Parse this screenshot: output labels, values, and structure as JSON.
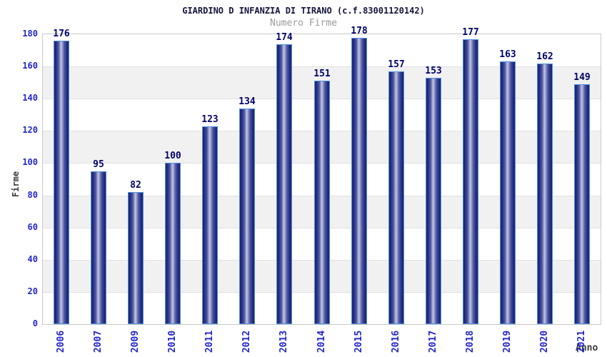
{
  "chart_data": {
    "type": "bar",
    "title": "GIARDINO D INFANZIA DI TIRANO (c.f.83001120142)",
    "subtitle": "Numero Firme",
    "xlabel": "Anno",
    "ylabel": "Firme",
    "categories": [
      "2006",
      "2007",
      "2009",
      "2010",
      "2011",
      "2012",
      "2013",
      "2014",
      "2015",
      "2016",
      "2017",
      "2018",
      "2019",
      "2020",
      "2021"
    ],
    "values": [
      176,
      95,
      82,
      100,
      123,
      134,
      174,
      151,
      178,
      157,
      153,
      177,
      163,
      162,
      149
    ],
    "ylim": [
      0,
      180
    ],
    "ytick_step": 20,
    "grid": true,
    "legend": "none",
    "alternating_bands": [
      [
        20,
        40
      ],
      [
        60,
        80
      ],
      [
        100,
        120
      ],
      [
        140,
        160
      ]
    ],
    "colors": {
      "title": "#14143c",
      "subtitle": "#9a9a9a",
      "tick_label": "#2326cc",
      "value_label": "#00006e",
      "axis_title": "#3a3a3c",
      "plot_border": "#c9c9c9",
      "grid_line": "#e2e2e2",
      "band_fill": "#f1f1f1",
      "bar_border": "#4e90e2",
      "bar_gradient": [
        [
          "#1b2373",
          0
        ],
        [
          "#242d80",
          12
        ],
        [
          "#4e57a0",
          30
        ],
        [
          "#c3c7e4",
          48
        ],
        [
          "#4e57a0",
          70
        ],
        [
          "#242d80",
          88
        ],
        [
          "#1b2373",
          100
        ]
      ]
    }
  }
}
